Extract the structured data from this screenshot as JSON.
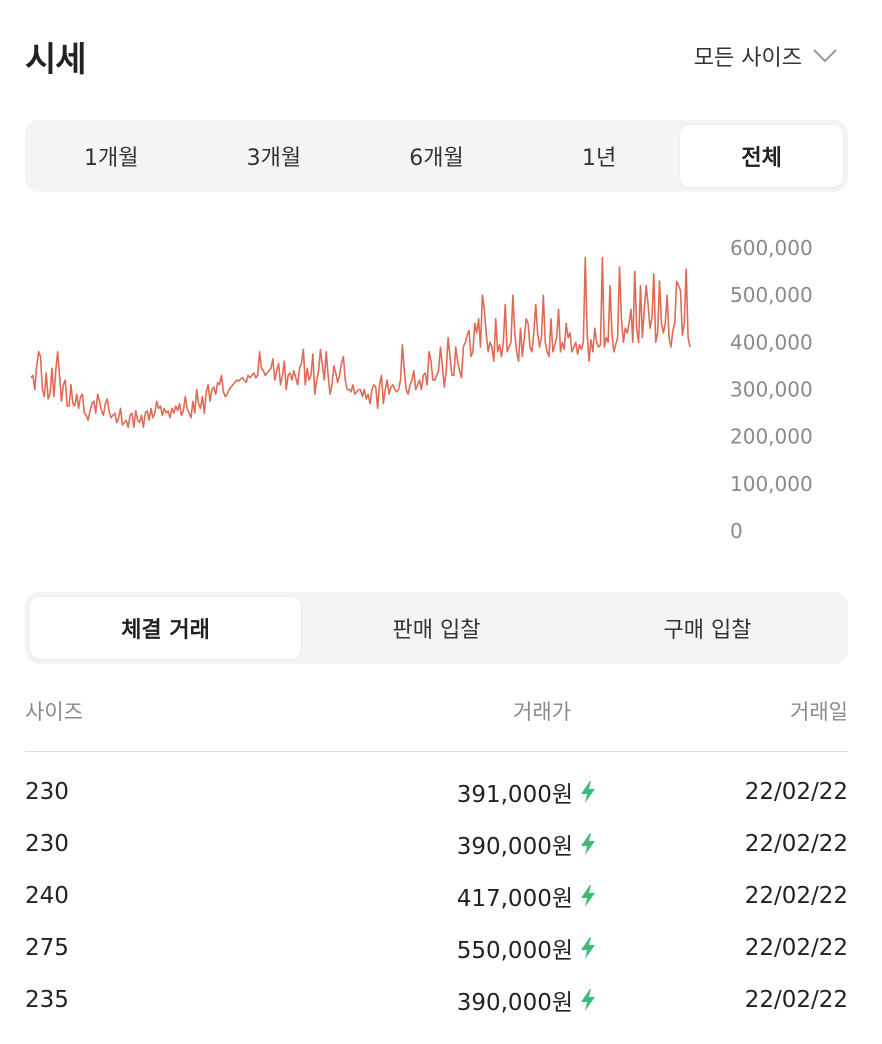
{
  "header": {
    "title": "시세",
    "size_select_label": "모든 사이즈"
  },
  "period_tabs": [
    {
      "label": "1개월",
      "active": false
    },
    {
      "label": "3개월",
      "active": false
    },
    {
      "label": "6개월",
      "active": false
    },
    {
      "label": "1년",
      "active": false
    },
    {
      "label": "전체",
      "active": true
    }
  ],
  "colors": {
    "line": "#e06a55",
    "lightning": "#41b979",
    "tab_bg": "#f4f4f4",
    "axis_text": "#8a8a8a"
  },
  "chart_data": {
    "type": "line",
    "ylim": [
      0,
      600000
    ],
    "y_ticks": [
      "600,000",
      "500,000",
      "400,000",
      "300,000",
      "200,000",
      "100,000",
      "0"
    ],
    "y_tick_values": [
      600000,
      500000,
      400000,
      300000,
      200000,
      100000,
      0
    ],
    "series": [
      {
        "values": [
          325000,
          330000,
          300000,
          350000,
          380000,
          370000,
          300000,
          285000,
          335000,
          280000,
          290000,
          345000,
          285000,
          340000,
          380000,
          330000,
          275000,
          310000,
          320000,
          265000,
          265000,
          310000,
          270000,
          265000,
          290000,
          260000,
          285000,
          290000,
          250000,
          245000,
          235000,
          255000,
          270000,
          275000,
          250000,
          290000,
          275000,
          255000,
          245000,
          270000,
          280000,
          255000,
          240000,
          245000,
          250000,
          230000,
          240000,
          260000,
          225000,
          230000,
          235000,
          220000,
          245000,
          250000,
          220000,
          255000,
          235000,
          230000,
          245000,
          220000,
          250000,
          255000,
          235000,
          260000,
          240000,
          250000,
          275000,
          260000,
          265000,
          245000,
          260000,
          250000,
          255000,
          240000,
          260000,
          250000,
          265000,
          255000,
          270000,
          245000,
          255000,
          285000,
          260000,
          250000,
          240000,
          275000,
          250000,
          300000,
          270000,
          260000,
          285000,
          250000,
          295000,
          310000,
          275000,
          300000,
          305000,
          290000,
          315000,
          310000,
          330000,
          295000,
          285000,
          290000,
          300000,
          305000,
          310000,
          315000,
          320000,
          318000,
          322000,
          325000,
          320000,
          315000,
          330000,
          325000,
          330000,
          335000,
          325000,
          330000,
          380000,
          345000,
          340000,
          330000,
          335000,
          340000,
          345000,
          365000,
          320000,
          340000,
          355000,
          310000,
          330000,
          360000,
          300000,
          330000,
          335000,
          320000,
          340000,
          325000,
          310000,
          345000,
          355000,
          385000,
          310000,
          345000,
          320000,
          330000,
          375000,
          290000,
          320000,
          340000,
          385000,
          350000,
          320000,
          380000,
          330000,
          290000,
          310000,
          350000,
          335000,
          315000,
          330000,
          355000,
          370000,
          320000,
          300000,
          300000,
          295000,
          310000,
          290000,
          295000,
          300000,
          300000,
          285000,
          300000,
          280000,
          290000,
          270000,
          300000,
          310000,
          305000,
          260000,
          310000,
          330000,
          270000,
          300000,
          320000,
          290000,
          305000,
          310000,
          300000,
          295000,
          300000,
          320000,
          395000,
          340000,
          300000,
          290000,
          310000,
          320000,
          340000,
          300000,
          310000,
          320000,
          300000,
          330000,
          335000,
          310000,
          380000,
          360000,
          320000,
          320000,
          330000,
          340000,
          390000,
          350000,
          305000,
          340000,
          410000,
          370000,
          330000,
          330000,
          390000,
          360000,
          340000,
          325000,
          390000,
          400000,
          415000,
          425000,
          370000,
          380000,
          440000,
          420000,
          450000,
          390000,
          500000,
          470000,
          420000,
          380000,
          400000,
          390000,
          360000,
          450000,
          380000,
          395000,
          370000,
          400000,
          480000,
          380000,
          390000,
          400000,
          500000,
          420000,
          380000,
          360000,
          430000,
          370000,
          410000,
          450000,
          440000,
          390000,
          380000,
          420000,
          480000,
          420000,
          390000,
          410000,
          500000,
          400000,
          380000,
          370000,
          450000,
          380000,
          395000,
          410000,
          470000,
          380000,
          400000,
          385000,
          440000,
          410000,
          420000,
          380000,
          390000,
          400000,
          375000,
          395000,
          385000,
          400000,
          580000,
          420000,
          360000,
          405000,
          380000,
          430000,
          400000,
          390000,
          395000,
          580000,
          390000,
          410000,
          400000,
          520000,
          420000,
          380000,
          395000,
          410000,
          560000,
          450000,
          400000,
          430000,
          420000,
          440000,
          470000,
          400000,
          550000,
          430000,
          400000,
          520000,
          410000,
          470000,
          520000,
          480000,
          430000,
          450000,
          545000,
          400000,
          420000,
          530000,
          440000,
          420000,
          440000,
          500000,
          410000,
          390000,
          425000,
          440000,
          530000,
          520000,
          510000,
          415000,
          440000,
          555000,
          410000,
          390000
        ]
      }
    ]
  },
  "trade_tabs": [
    {
      "label": "체결 거래",
      "active": true
    },
    {
      "label": "판매 입찰",
      "active": false
    },
    {
      "label": "구매 입찰",
      "active": false
    }
  ],
  "table": {
    "headers": {
      "size": "사이즈",
      "price": "거래가",
      "date": "거래일"
    },
    "rows": [
      {
        "size": "230",
        "price": "391,000원",
        "date": "22/02/22",
        "icon": "lightning-icon"
      },
      {
        "size": "230",
        "price": "390,000원",
        "date": "22/02/22",
        "icon": "lightning-icon"
      },
      {
        "size": "240",
        "price": "417,000원",
        "date": "22/02/22",
        "icon": "lightning-icon"
      },
      {
        "size": "275",
        "price": "550,000원",
        "date": "22/02/22",
        "icon": "lightning-icon"
      },
      {
        "size": "235",
        "price": "390,000원",
        "date": "22/02/22",
        "icon": "lightning-icon"
      }
    ]
  }
}
